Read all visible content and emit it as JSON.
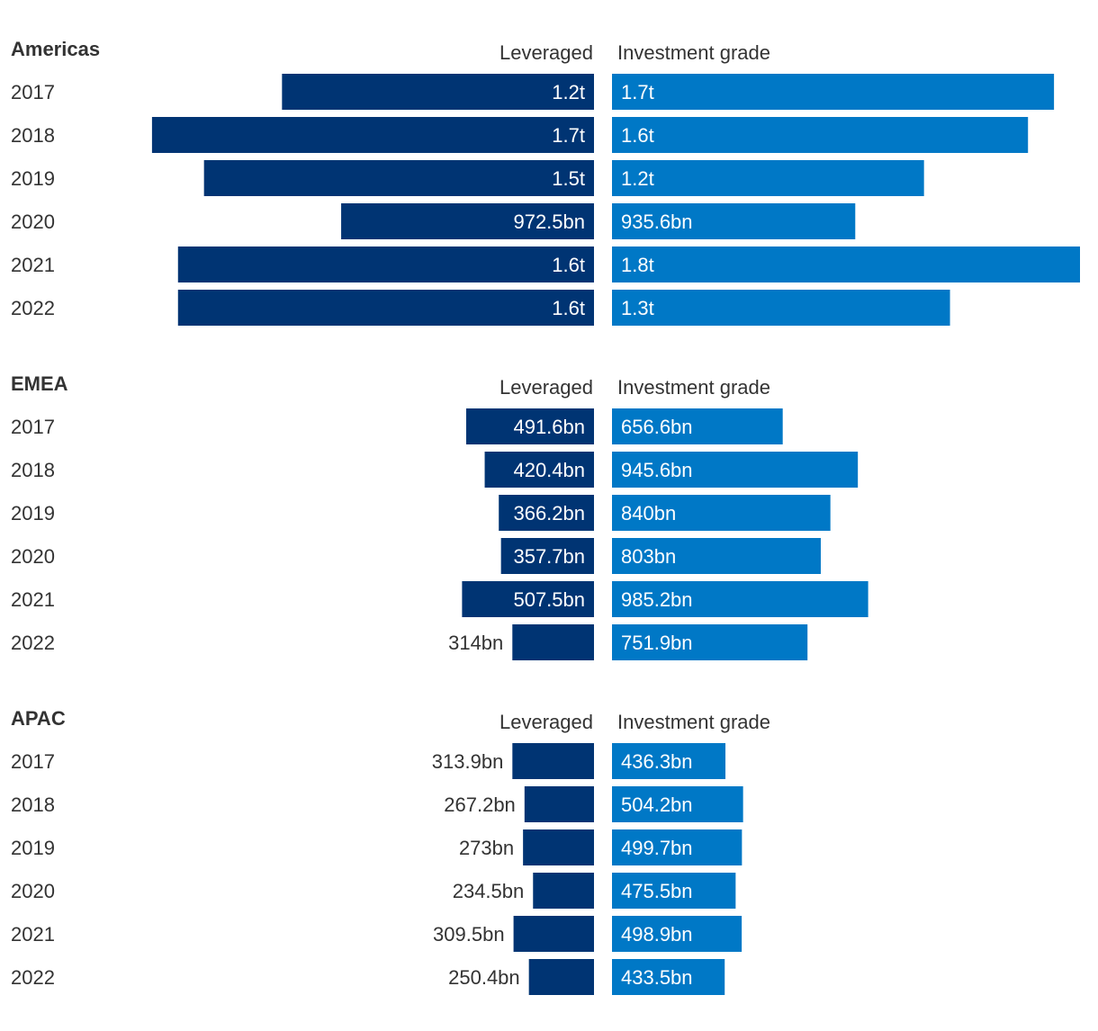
{
  "colors": {
    "leveraged": "#003473",
    "investment_grade": "#0078c6",
    "label_inside": "#ffffff",
    "label_outside": "#333333",
    "text": "#333333"
  },
  "chart_data": [
    {
      "type": "bar",
      "orientation": "horizontal-diverging",
      "title": "Americas",
      "categories": [
        "2017",
        "2018",
        "2019",
        "2020",
        "2021",
        "2022"
      ],
      "series": [
        {
          "name": "Leveraged",
          "values": [
            1200,
            1700,
            1500,
            972.5,
            1600,
            1600
          ],
          "labels": [
            "1.2t",
            "1.7t",
            "1.5t",
            "972.5bn",
            "1.6t",
            "1.6t"
          ]
        },
        {
          "name": "Investment grade",
          "values": [
            1700,
            1600,
            1200,
            935.6,
            1800,
            1300
          ],
          "labels": [
            "1.7t",
            "1.6t",
            "1.2t",
            "935.6bn",
            "1.8t",
            "1.3t"
          ]
        }
      ],
      "unit": "bn"
    },
    {
      "type": "bar",
      "orientation": "horizontal-diverging",
      "title": "EMEA",
      "categories": [
        "2017",
        "2018",
        "2019",
        "2020",
        "2021",
        "2022"
      ],
      "series": [
        {
          "name": "Leveraged",
          "values": [
            491.6,
            420.4,
            366.2,
            357.7,
            507.5,
            314
          ],
          "labels": [
            "491.6bn",
            "420.4bn",
            "366.2bn",
            "357.7bn",
            "507.5bn",
            "314bn"
          ]
        },
        {
          "name": "Investment grade",
          "values": [
            656.6,
            945.6,
            840,
            803,
            985.2,
            751.9
          ],
          "labels": [
            "656.6bn",
            "945.6bn",
            "840bn",
            "803bn",
            "985.2bn",
            "751.9bn"
          ]
        }
      ],
      "unit": "bn"
    },
    {
      "type": "bar",
      "orientation": "horizontal-diverging",
      "title": "APAC",
      "categories": [
        "2017",
        "2018",
        "2019",
        "2020",
        "2021",
        "2022"
      ],
      "series": [
        {
          "name": "Leveraged",
          "values": [
            313.9,
            267.2,
            273,
            234.5,
            309.5,
            250.4
          ],
          "labels": [
            "313.9bn",
            "267.2bn",
            "273bn",
            "234.5bn",
            "309.5bn",
            "250.4bn"
          ]
        },
        {
          "name": "Investment grade",
          "values": [
            436.3,
            504.2,
            499.7,
            475.5,
            498.9,
            433.5
          ],
          "labels": [
            "436.3bn",
            "504.2bn",
            "499.7bn",
            "475.5bn",
            "498.9bn",
            "433.5bn"
          ]
        }
      ],
      "unit": "bn"
    }
  ]
}
